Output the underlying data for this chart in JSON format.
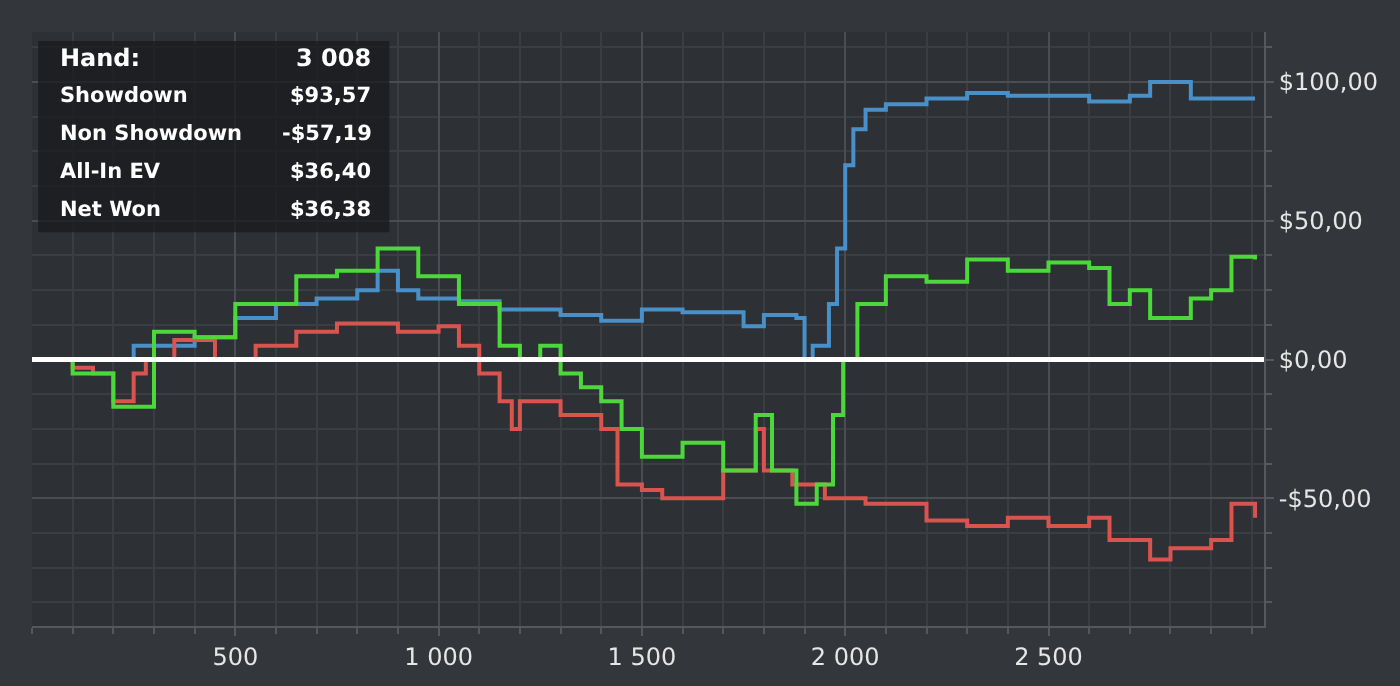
{
  "chart_data": {
    "type": "step",
    "xlim": [
      0,
      3030
    ],
    "xticks": [
      500,
      {
        "value": 1000,
        "label": "1 000"
      },
      {
        "value": 1500,
        "label": "1 500"
      },
      {
        "value": 2000,
        "label": "2 000"
      },
      {
        "value": 2500,
        "label": "2 500"
      }
    ],
    "ylim": [
      -96,
      118
    ],
    "yticks": [
      {
        "value": -50,
        "label": "-$50,00"
      },
      {
        "value": 0,
        "label": "$0,00"
      },
      {
        "value": 50,
        "label": "$50,00"
      },
      {
        "value": 100,
        "label": "$100,00"
      }
    ],
    "grid": true,
    "line_style": "solid",
    "marker": "none",
    "ref_lines": [
      {
        "axis": "y",
        "value": 0,
        "color": "#ffffff"
      }
    ],
    "annotations": [
      "Hand:",
      "3 008",
      "Showdown",
      "$93,57",
      "Non Showdown",
      "-$57,19",
      "All-In EV",
      "$36,40",
      "Net Won",
      "$36,38"
    ],
    "series": [
      {
        "color": "#4a90c8",
        "x": [
          0,
          150,
          250,
          300,
          400,
          500,
          600,
          700,
          800,
          850,
          900,
          950,
          1050,
          1150,
          1250,
          1300,
          1400,
          1500,
          1600,
          1700,
          1750,
          1800,
          1880,
          1900,
          1920,
          1960,
          1980,
          2000,
          2020,
          2050,
          2100,
          2200,
          2300,
          2400,
          2500,
          2600,
          2700,
          2750,
          2830,
          2850,
          2950,
          3008
        ],
        "values": [
          0,
          0,
          5,
          5,
          8,
          15,
          20,
          22,
          25,
          32,
          25,
          22,
          21,
          18,
          18,
          16,
          14,
          18,
          17,
          17,
          12,
          16,
          15,
          0,
          5,
          20,
          40,
          70,
          83,
          90,
          92,
          94,
          96,
          95,
          95,
          93,
          95,
          100,
          100,
          94,
          94,
          94
        ]
      },
      {
        "color": "#d9534f",
        "x": [
          0,
          100,
          150,
          200,
          250,
          280,
          350,
          450,
          550,
          650,
          750,
          900,
          1000,
          1050,
          1100,
          1150,
          1180,
          1200,
          1250,
          1300,
          1400,
          1440,
          1500,
          1550,
          1600,
          1700,
          1780,
          1800,
          1870,
          1950,
          2050,
          2200,
          2300,
          2400,
          2500,
          2600,
          2650,
          2750,
          2800,
          2900,
          2950,
          3008
        ],
        "values": [
          0,
          -3,
          -5,
          -15,
          -5,
          0,
          7,
          0,
          5,
          10,
          13,
          10,
          12,
          5,
          -5,
          -15,
          -25,
          -15,
          -15,
          -20,
          -25,
          -45,
          -47,
          -50,
          -50,
          -40,
          -25,
          -40,
          -45,
          -50,
          -52,
          -58,
          -60,
          -57,
          -60,
          -57,
          -65,
          -72,
          -68,
          -65,
          -52,
          -57
        ]
      },
      {
        "color": "#4cd83a",
        "x": [
          0,
          100,
          200,
          300,
          400,
          500,
          650,
          750,
          850,
          950,
          1050,
          1150,
          1200,
          1250,
          1300,
          1350,
          1400,
          1450,
          1500,
          1600,
          1700,
          1780,
          1820,
          1880,
          1930,
          1970,
          1995,
          2030,
          2100,
          2200,
          2300,
          2400,
          2500,
          2600,
          2650,
          2700,
          2750,
          2850,
          2900,
          2950,
          3008
        ],
        "values": [
          0,
          -5,
          -17,
          10,
          8,
          20,
          30,
          32,
          40,
          30,
          20,
          5,
          0,
          5,
          -5,
          -10,
          -15,
          -25,
          -35,
          -30,
          -40,
          -20,
          -40,
          -52,
          -45,
          -20,
          0,
          20,
          30,
          28,
          36,
          32,
          35,
          33,
          20,
          25,
          15,
          22,
          25,
          37,
          36
        ]
      }
    ]
  }
}
